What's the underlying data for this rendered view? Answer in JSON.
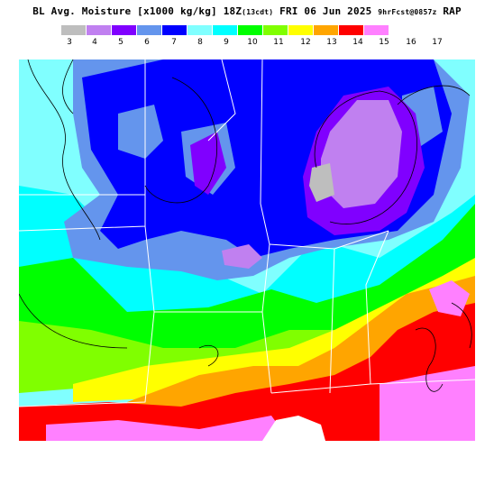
{
  "header": {
    "title_main": "BL Avg. Moisture [x1000 kg/kg] 18Z",
    "title_local": "(13cdt)",
    "title_date": " FRI 06 Jun 2025 ",
    "title_fcst": "9hrFcst@0857z",
    "title_model": " RAP"
  },
  "legend": {
    "labels": [
      "3",
      "4",
      "5",
      "6",
      "7",
      "8",
      "9",
      "10",
      "11",
      "12",
      "13",
      "14",
      "15",
      "16",
      "17"
    ],
    "colors": [
      "#bebebe",
      "#c080f0",
      "#8000ff",
      "#6495ed",
      "#0000ff",
      "#80ffff",
      "#00ffff",
      "#00ff00",
      "#80ff00",
      "#ffff00",
      "#ffa500",
      "#ff0000",
      "#ff80ff",
      "#ffffff"
    ]
  },
  "map_colors": {
    "bg_lo": "#80ffff",
    "mid": "#00ff00",
    "warm": "#ffa500",
    "hot": "#ff0000"
  }
}
